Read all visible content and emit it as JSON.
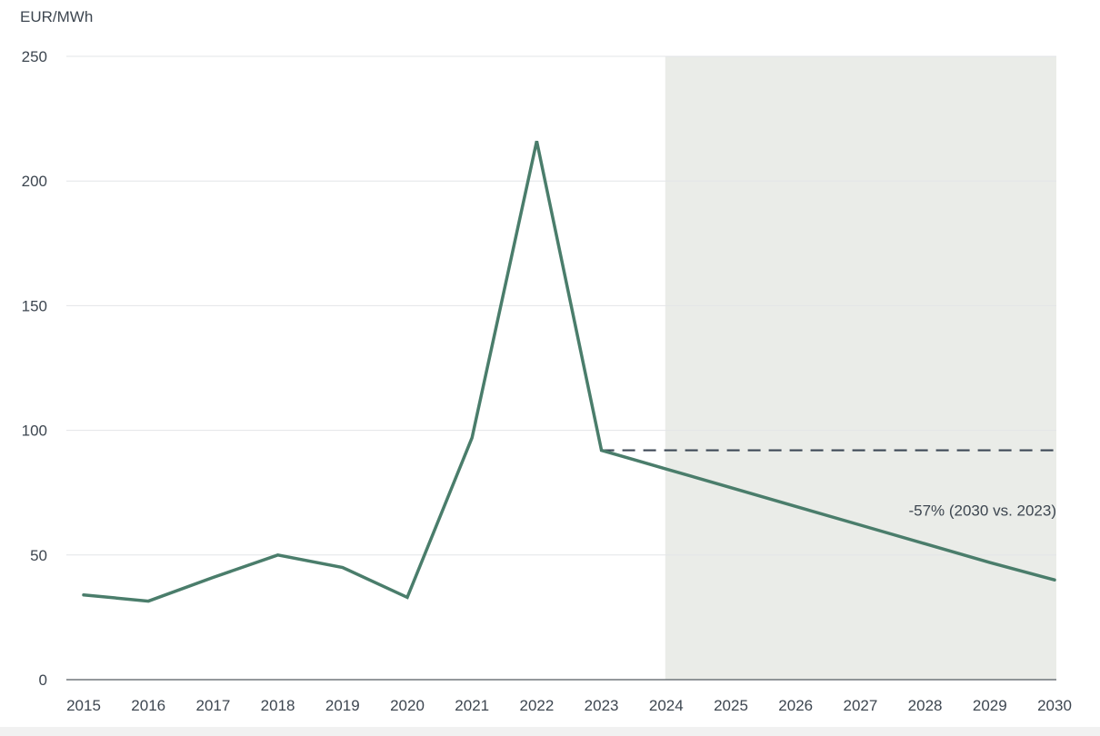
{
  "chart_data": {
    "type": "line",
    "unit_label": "EUR/MWh",
    "x": [
      2015,
      2016,
      2017,
      2018,
      2019,
      2020,
      2021,
      2022,
      2023,
      2024,
      2025,
      2026,
      2027,
      2028,
      2029,
      2030
    ],
    "x_tick_labels": [
      "2015",
      "2016",
      "2017",
      "2018",
      "2019",
      "2020",
      "2021",
      "2022",
      "2023",
      "2024",
      "2025",
      "2026",
      "2027",
      "2028",
      "2029",
      "2030"
    ],
    "y_ticks": [
      0,
      50,
      100,
      150,
      200,
      250
    ],
    "y_tick_labels": [
      "0",
      "50",
      "100",
      "150",
      "200",
      "250"
    ],
    "ylim": [
      0,
      250
    ],
    "xlim": [
      2015,
      2030
    ],
    "grid": "horizontal",
    "series": [
      {
        "values": [
          34,
          31.5,
          41,
          50,
          45,
          33,
          97,
          216,
          92,
          84.5,
          77,
          69.5,
          62,
          54.5,
          47,
          40
        ],
        "color": "#4a7d6b"
      }
    ],
    "reference_line": {
      "value": 92,
      "from_x": 2023,
      "to_x": 2030,
      "style": "dashed",
      "color": "#3d4856"
    },
    "shaded_region": {
      "from_x": 2024,
      "to_x": 2030,
      "color": "#eaece8"
    },
    "annotation": {
      "text": "-57% (2030 vs. 2023)",
      "x": 2030,
      "y": 68
    }
  }
}
